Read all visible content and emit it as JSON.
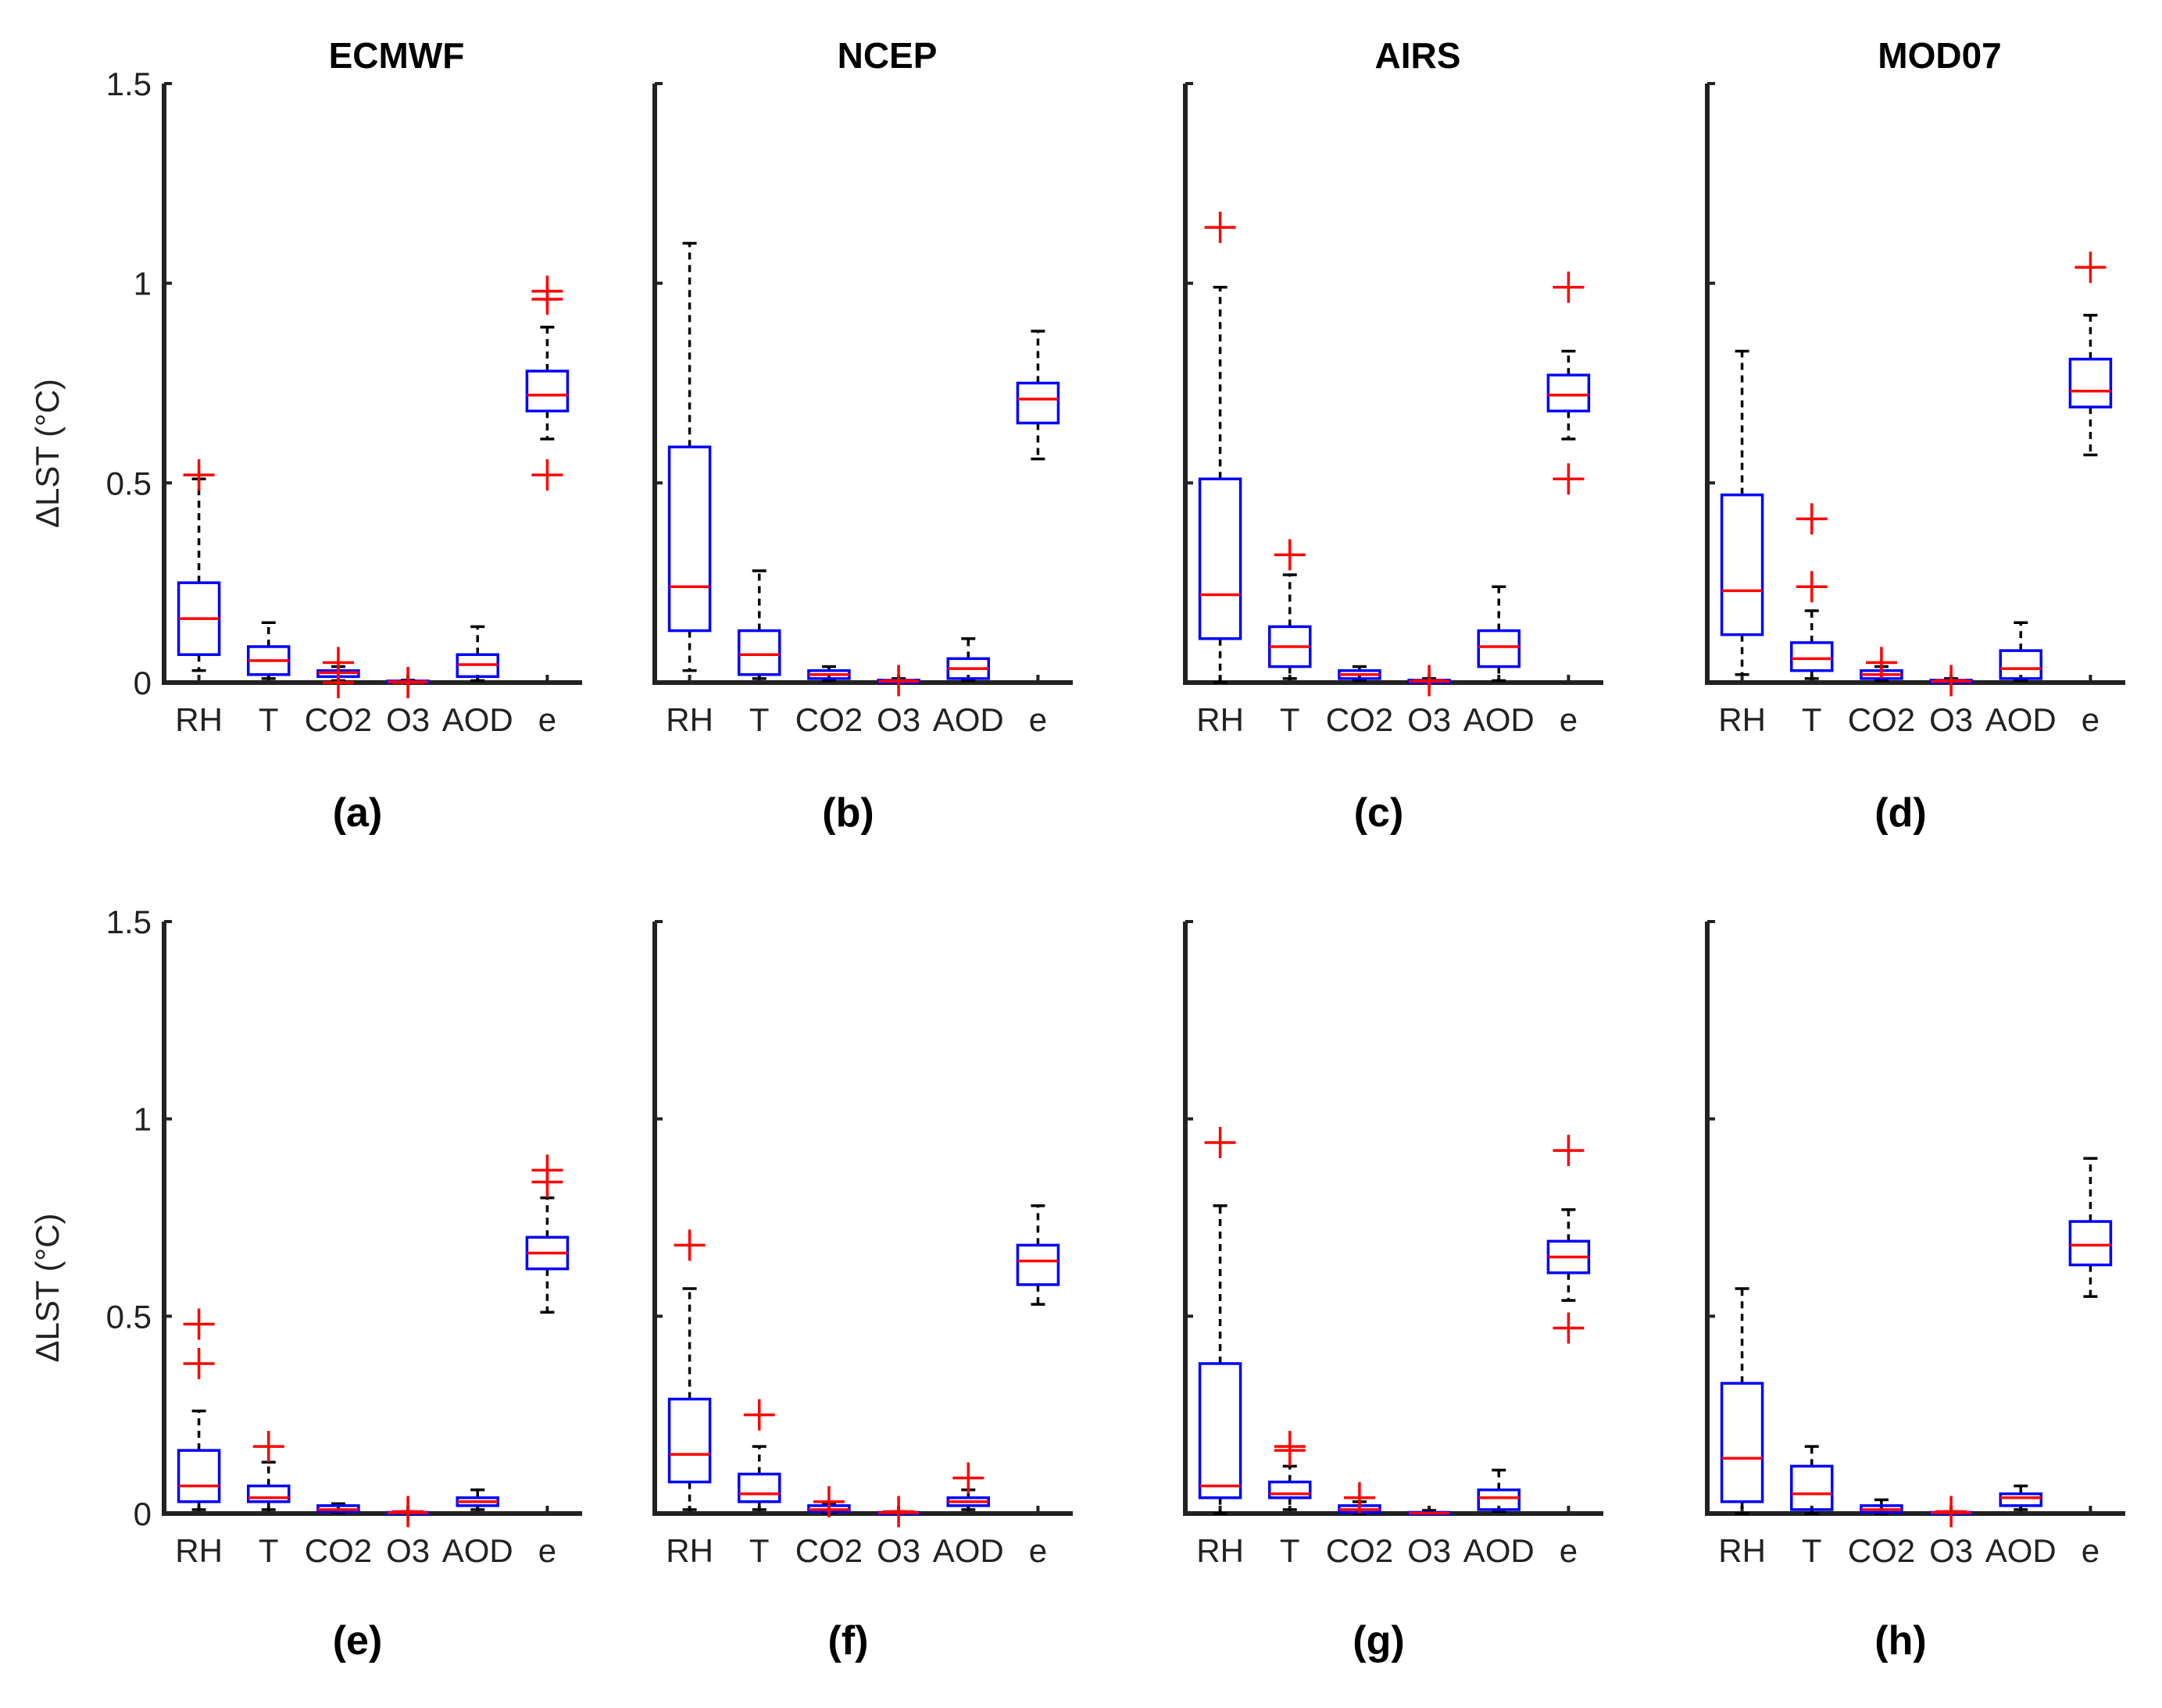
{
  "figure": {
    "y_axis_label": "ΔLST (°C)",
    "y_ticks": [
      "0",
      "0.5",
      "1",
      "1.5"
    ],
    "colors": {
      "box": "#0000ff",
      "median": "#ff0000",
      "outlier": "#ff0000",
      "whisker": "#000000",
      "axis": "#222222"
    }
  },
  "chart_data": [
    {
      "type": "box",
      "panel": "(a)",
      "title": "ECMWF",
      "ylabel": "ΔLST (°C)",
      "ylim": [
        0,
        1.5
      ],
      "categories": [
        "RH",
        "T",
        "CO2",
        "O3",
        "AOD",
        "e"
      ],
      "boxes": [
        {
          "category": "RH",
          "min": 0.03,
          "q1": 0.07,
          "median": 0.16,
          "q3": 0.25,
          "max": 0.51,
          "outliers": [
            0.52
          ]
        },
        {
          "category": "T",
          "min": 0.01,
          "q1": 0.02,
          "median": 0.055,
          "q3": 0.09,
          "max": 0.15,
          "outliers": []
        },
        {
          "category": "CO2",
          "min": 0.005,
          "q1": 0.015,
          "median": 0.025,
          "q3": 0.03,
          "max": 0.04,
          "outliers": [
            0.0,
            0.05
          ]
        },
        {
          "category": "O3",
          "min": 0.0,
          "q1": 0.0,
          "median": 0.002,
          "q3": 0.004,
          "max": 0.006,
          "outliers": [
            0.0
          ]
        },
        {
          "category": "AOD",
          "min": 0.005,
          "q1": 0.015,
          "median": 0.045,
          "q3": 0.07,
          "max": 0.14,
          "outliers": []
        },
        {
          "category": "e",
          "min": 0.61,
          "q1": 0.68,
          "median": 0.72,
          "q3": 0.78,
          "max": 0.89,
          "outliers": [
            0.52,
            0.96,
            0.98
          ]
        }
      ]
    },
    {
      "type": "box",
      "panel": "(b)",
      "title": "NCEP",
      "ylabel": "",
      "ylim": [
        0,
        1.5
      ],
      "categories": [
        "RH",
        "T",
        "CO2",
        "O3",
        "AOD",
        "e"
      ],
      "boxes": [
        {
          "category": "RH",
          "min": 0.03,
          "q1": 0.13,
          "median": 0.24,
          "q3": 0.59,
          "max": 1.1,
          "outliers": []
        },
        {
          "category": "T",
          "min": 0.01,
          "q1": 0.02,
          "median": 0.07,
          "q3": 0.13,
          "max": 0.28,
          "outliers": []
        },
        {
          "category": "CO2",
          "min": 0.005,
          "q1": 0.01,
          "median": 0.02,
          "q3": 0.03,
          "max": 0.04,
          "outliers": []
        },
        {
          "category": "O3",
          "min": 0.0,
          "q1": 0.0,
          "median": 0.003,
          "q3": 0.006,
          "max": 0.01,
          "outliers": [
            0.005
          ]
        },
        {
          "category": "AOD",
          "min": 0.005,
          "q1": 0.01,
          "median": 0.035,
          "q3": 0.06,
          "max": 0.11,
          "outliers": []
        },
        {
          "category": "e",
          "min": 0.56,
          "q1": 0.65,
          "median": 0.71,
          "q3": 0.75,
          "max": 0.88,
          "outliers": []
        }
      ]
    },
    {
      "type": "box",
      "panel": "(c)",
      "title": "AIRS",
      "ylabel": "",
      "ylim": [
        0,
        1.5
      ],
      "categories": [
        "RH",
        "T",
        "CO2",
        "O3",
        "AOD",
        "e"
      ],
      "boxes": [
        {
          "category": "RH",
          "min": 0.0,
          "q1": 0.11,
          "median": 0.22,
          "q3": 0.51,
          "max": 0.99,
          "outliers": [
            1.14
          ]
        },
        {
          "category": "T",
          "min": 0.01,
          "q1": 0.04,
          "median": 0.09,
          "q3": 0.14,
          "max": 0.27,
          "outliers": [
            0.32
          ]
        },
        {
          "category": "CO2",
          "min": 0.005,
          "q1": 0.01,
          "median": 0.02,
          "q3": 0.03,
          "max": 0.04,
          "outliers": []
        },
        {
          "category": "O3",
          "min": 0.0,
          "q1": 0.0,
          "median": 0.003,
          "q3": 0.006,
          "max": 0.01,
          "outliers": [
            0.005
          ]
        },
        {
          "category": "AOD",
          "min": 0.005,
          "q1": 0.04,
          "median": 0.09,
          "q3": 0.13,
          "max": 0.24,
          "outliers": []
        },
        {
          "category": "e",
          "min": 0.61,
          "q1": 0.68,
          "median": 0.72,
          "q3": 0.77,
          "max": 0.83,
          "outliers": [
            0.51,
            0.99
          ]
        }
      ]
    },
    {
      "type": "box",
      "panel": "(d)",
      "title": "MOD07",
      "ylabel": "",
      "ylim": [
        0,
        1.5
      ],
      "categories": [
        "RH",
        "T",
        "CO2",
        "O3",
        "AOD",
        "e"
      ],
      "boxes": [
        {
          "category": "RH",
          "min": 0.02,
          "q1": 0.12,
          "median": 0.23,
          "q3": 0.47,
          "max": 0.83,
          "outliers": []
        },
        {
          "category": "T",
          "min": 0.01,
          "q1": 0.03,
          "median": 0.06,
          "q3": 0.1,
          "max": 0.18,
          "outliers": [
            0.24,
            0.41
          ]
        },
        {
          "category": "CO2",
          "min": 0.005,
          "q1": 0.01,
          "median": 0.02,
          "q3": 0.03,
          "max": 0.04,
          "outliers": [
            0.05
          ]
        },
        {
          "category": "O3",
          "min": 0.0,
          "q1": 0.0,
          "median": 0.003,
          "q3": 0.006,
          "max": 0.01,
          "outliers": [
            0.005
          ]
        },
        {
          "category": "AOD",
          "min": 0.005,
          "q1": 0.01,
          "median": 0.035,
          "q3": 0.08,
          "max": 0.15,
          "outliers": []
        },
        {
          "category": "e",
          "min": 0.57,
          "q1": 0.69,
          "median": 0.73,
          "q3": 0.81,
          "max": 0.92,
          "outliers": [
            1.04
          ]
        }
      ]
    },
    {
      "type": "box",
      "panel": "(e)",
      "title": "",
      "ylabel": "ΔLST (°C)",
      "ylim": [
        0,
        1.5
      ],
      "categories": [
        "RH",
        "T",
        "CO2",
        "O3",
        "AOD",
        "e"
      ],
      "boxes": [
        {
          "category": "RH",
          "min": 0.01,
          "q1": 0.03,
          "median": 0.07,
          "q3": 0.16,
          "max": 0.26,
          "outliers": [
            0.38,
            0.48
          ]
        },
        {
          "category": "T",
          "min": 0.01,
          "q1": 0.03,
          "median": 0.04,
          "q3": 0.07,
          "max": 0.13,
          "outliers": [
            0.17
          ]
        },
        {
          "category": "CO2",
          "min": 0.002,
          "q1": 0.005,
          "median": 0.01,
          "q3": 0.02,
          "max": 0.025,
          "outliers": []
        },
        {
          "category": "O3",
          "min": 0.0,
          "q1": 0.0,
          "median": 0.002,
          "q3": 0.003,
          "max": 0.005,
          "outliers": [
            0.005
          ]
        },
        {
          "category": "AOD",
          "min": 0.01,
          "q1": 0.02,
          "median": 0.03,
          "q3": 0.04,
          "max": 0.06,
          "outliers": []
        },
        {
          "category": "e",
          "min": 0.51,
          "q1": 0.62,
          "median": 0.66,
          "q3": 0.7,
          "max": 0.8,
          "outliers": [
            0.84,
            0.87
          ]
        }
      ]
    },
    {
      "type": "box",
      "panel": "(f)",
      "title": "",
      "ylabel": "",
      "ylim": [
        0,
        1.5
      ],
      "categories": [
        "RH",
        "T",
        "CO2",
        "O3",
        "AOD",
        "e"
      ],
      "boxes": [
        {
          "category": "RH",
          "min": 0.01,
          "q1": 0.08,
          "median": 0.15,
          "q3": 0.29,
          "max": 0.57,
          "outliers": [
            0.68
          ]
        },
        {
          "category": "T",
          "min": 0.01,
          "q1": 0.03,
          "median": 0.05,
          "q3": 0.1,
          "max": 0.17,
          "outliers": [
            0.25
          ]
        },
        {
          "category": "CO2",
          "min": 0.002,
          "q1": 0.005,
          "median": 0.01,
          "q3": 0.02,
          "max": 0.025,
          "outliers": [
            0.03
          ]
        },
        {
          "category": "O3",
          "min": 0.0,
          "q1": 0.0,
          "median": 0.002,
          "q3": 0.003,
          "max": 0.005,
          "outliers": [
            0.005
          ]
        },
        {
          "category": "AOD",
          "min": 0.01,
          "q1": 0.02,
          "median": 0.03,
          "q3": 0.04,
          "max": 0.06,
          "outliers": [
            0.09
          ]
        },
        {
          "category": "e",
          "min": 0.53,
          "q1": 0.58,
          "median": 0.64,
          "q3": 0.68,
          "max": 0.78,
          "outliers": []
        }
      ]
    },
    {
      "type": "box",
      "panel": "(g)",
      "title": "",
      "ylabel": "",
      "ylim": [
        0,
        1.5
      ],
      "categories": [
        "RH",
        "T",
        "CO2",
        "O3",
        "AOD",
        "e"
      ],
      "boxes": [
        {
          "category": "RH",
          "min": 0.0,
          "q1": 0.04,
          "median": 0.07,
          "q3": 0.38,
          "max": 0.78,
          "outliers": [
            0.94
          ]
        },
        {
          "category": "T",
          "min": 0.01,
          "q1": 0.04,
          "median": 0.05,
          "q3": 0.08,
          "max": 0.12,
          "outliers": [
            0.16,
            0.17
          ]
        },
        {
          "category": "CO2",
          "min": 0.0,
          "q1": 0.003,
          "median": 0.01,
          "q3": 0.02,
          "max": 0.03,
          "outliers": [
            0.04
          ]
        },
        {
          "category": "O3",
          "min": 0.0,
          "q1": 0.0,
          "median": 0.001,
          "q3": 0.003,
          "max": 0.008,
          "outliers": []
        },
        {
          "category": "AOD",
          "min": 0.005,
          "q1": 0.01,
          "median": 0.04,
          "q3": 0.06,
          "max": 0.11,
          "outliers": []
        },
        {
          "category": "e",
          "min": 0.54,
          "q1": 0.61,
          "median": 0.65,
          "q3": 0.69,
          "max": 0.77,
          "outliers": [
            0.47,
            0.92
          ]
        }
      ]
    },
    {
      "type": "box",
      "panel": "(h)",
      "title": "",
      "ylabel": "",
      "ylim": [
        0,
        1.5
      ],
      "categories": [
        "RH",
        "T",
        "CO2",
        "O3",
        "AOD",
        "e"
      ],
      "boxes": [
        {
          "category": "RH",
          "min": 0.0,
          "q1": 0.03,
          "median": 0.14,
          "q3": 0.33,
          "max": 0.57,
          "outliers": []
        },
        {
          "category": "T",
          "min": 0.0,
          "q1": 0.01,
          "median": 0.05,
          "q3": 0.12,
          "max": 0.17,
          "outliers": []
        },
        {
          "category": "CO2",
          "min": 0.0,
          "q1": 0.003,
          "median": 0.01,
          "q3": 0.02,
          "max": 0.035,
          "outliers": []
        },
        {
          "category": "O3",
          "min": 0.0,
          "q1": 0.0,
          "median": 0.002,
          "q3": 0.003,
          "max": 0.005,
          "outliers": [
            0.005
          ]
        },
        {
          "category": "AOD",
          "min": 0.01,
          "q1": 0.02,
          "median": 0.04,
          "q3": 0.05,
          "max": 0.07,
          "outliers": []
        },
        {
          "category": "e",
          "min": 0.55,
          "q1": 0.63,
          "median": 0.68,
          "q3": 0.74,
          "max": 0.9,
          "outliers": []
        }
      ]
    }
  ]
}
